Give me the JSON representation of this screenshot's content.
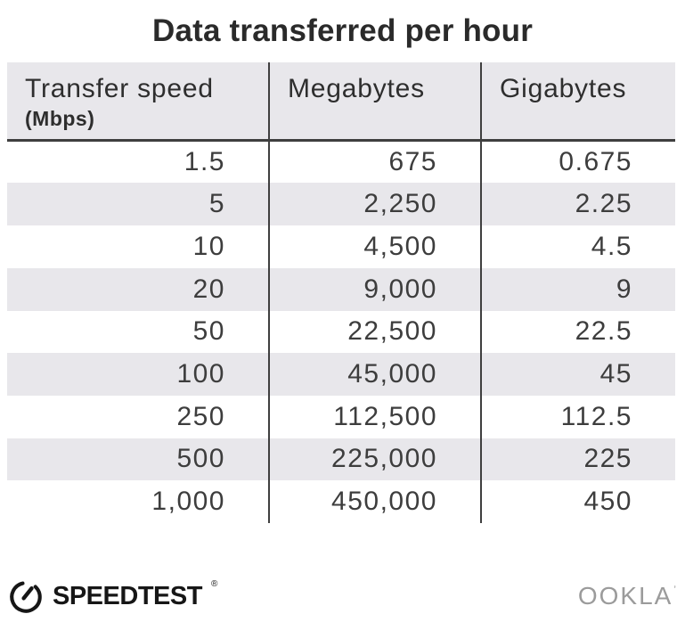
{
  "chart_data": {
    "type": "table",
    "title": "Data transferred per hour",
    "columns": [
      "Transfer speed (Mbps)",
      "Megabytes",
      "Gigabytes"
    ],
    "rows": [
      [
        1.5,
        675,
        0.675
      ],
      [
        5,
        2250,
        2.25
      ],
      [
        10,
        4500,
        4.5
      ],
      [
        20,
        9000,
        9
      ],
      [
        50,
        22500,
        22.5
      ],
      [
        100,
        45000,
        45
      ],
      [
        250,
        112500,
        112.5
      ],
      [
        500,
        225000,
        225
      ],
      [
        1000,
        450000,
        450
      ]
    ],
    "layout": {
      "alternating_row_shading": true,
      "shaded_rows": [
        "5",
        "20",
        "100",
        "500"
      ],
      "column_dividers": true
    }
  },
  "title": "Data transferred per hour",
  "table": {
    "columns": [
      {
        "label": "Transfer speed",
        "sublabel": "(Mbps)"
      },
      {
        "label": "Megabytes",
        "sublabel": ""
      },
      {
        "label": "Gigabytes",
        "sublabel": ""
      }
    ],
    "rows": [
      [
        "1.5",
        "675",
        "0.675"
      ],
      [
        "5",
        "2,250",
        "2.25"
      ],
      [
        "10",
        "4,500",
        "4.5"
      ],
      [
        "20",
        "9,000",
        "9"
      ],
      [
        "50",
        "22,500",
        "22.5"
      ],
      [
        "100",
        "45,000",
        "45"
      ],
      [
        "250",
        "112,500",
        "112.5"
      ],
      [
        "500",
        "225,000",
        "225"
      ],
      [
        "1,000",
        "450,000",
        "450"
      ]
    ]
  },
  "footer": {
    "speedtest_label": "SPEEDTEST",
    "speedtest_mark": "®",
    "ookla_label": "OOKLA",
    "ookla_mark": "ʼ"
  },
  "colors": {
    "header_bg": "#e8e7eb",
    "alt_row_bg": "#e8e7eb",
    "divider": "#3f3f3f",
    "title_text": "#2a2a2a",
    "number_text": "#3d3d3d",
    "speedtest_black": "#161616",
    "ookla_gray": "#9b9b9b"
  }
}
